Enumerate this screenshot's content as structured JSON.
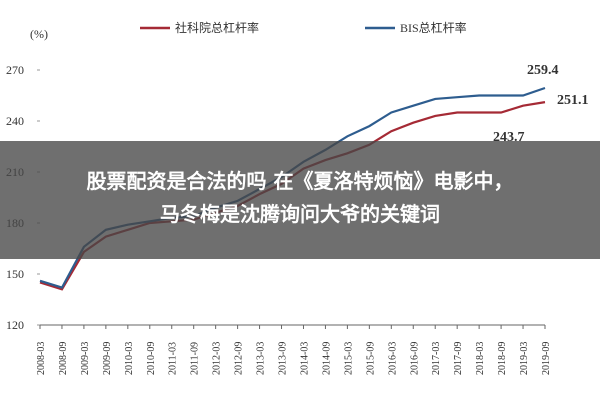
{
  "chart_data": {
    "type": "line",
    "y_unit": "(%)",
    "categories": [
      "2008-03",
      "2008-09",
      "2009-03",
      "2009-09",
      "2010-03",
      "2010-09",
      "2011-03",
      "2011-09",
      "2012-03",
      "2012-09",
      "2013-03",
      "2013-09",
      "2014-03",
      "2014-09",
      "2015-03",
      "2015-09",
      "2016-03",
      "2016-09",
      "2017-03",
      "2017-09",
      "2018-03",
      "2018-09",
      "2019-03",
      "2019-09"
    ],
    "series": [
      {
        "name": "社科院总杠杆率",
        "color": "#a52a35",
        "values": [
          145,
          141,
          163,
          172,
          176,
          180,
          181,
          182,
          186,
          190,
          197,
          203,
          212,
          217,
          221,
          226,
          234,
          239,
          243,
          245,
          245,
          245,
          249,
          251.1
        ]
      },
      {
        "name": "BIS总杠杆率",
        "color": "#2e5d8f",
        "values": [
          146,
          142,
          166,
          176,
          179,
          181,
          183,
          184,
          189,
          193,
          200,
          207,
          216,
          223,
          231,
          237,
          245,
          249,
          253,
          254,
          255,
          255,
          255,
          259.4
        ]
      }
    ],
    "annotations": [
      "243.7"
    ],
    "ylim": [
      120,
      280
    ],
    "yticks": [
      120,
      150,
      180,
      210,
      240,
      270
    ],
    "grid": false
  },
  "overlay": {
    "lines": [
      "股票配资是合法的吗 在《夏洛特烦恼》电影中，",
      "马冬梅是沈腾询问大爷的关键词"
    ]
  }
}
